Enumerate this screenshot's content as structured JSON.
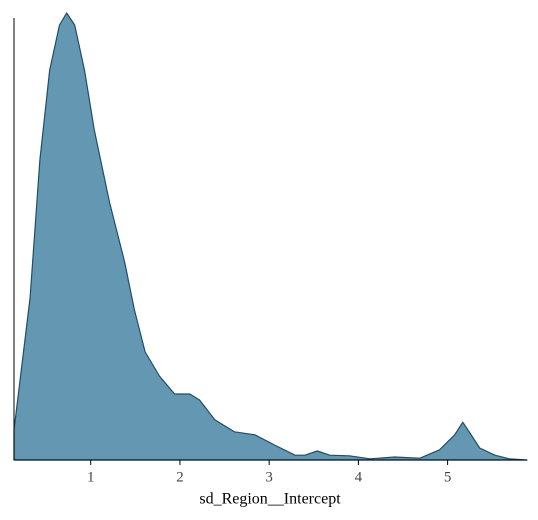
{
  "chart_data": {
    "type": "area",
    "x_label": "sd_Region__Intercept",
    "x": [
      0.14,
      0.32,
      0.43,
      0.54,
      0.65,
      0.73,
      0.82,
      0.93,
      1.04,
      1.21,
      1.38,
      1.49,
      1.61,
      1.77,
      1.94,
      2.11,
      2.22,
      2.39,
      2.61,
      2.84,
      3.06,
      3.29,
      3.4,
      3.54,
      3.68,
      3.9,
      4.13,
      4.41,
      4.69,
      4.91,
      5.08,
      5.17,
      5.25,
      5.36,
      5.53,
      5.69,
      5.89
    ],
    "values": [
      0.05,
      0.27,
      0.5,
      0.65,
      0.725,
      0.745,
      0.725,
      0.65,
      0.55,
      0.43,
      0.33,
      0.25,
      0.18,
      0.14,
      0.11,
      0.11,
      0.1,
      0.067,
      0.047,
      0.042,
      0.025,
      0.008,
      0.008,
      0.015,
      0.008,
      0.007,
      0.002,
      0.005,
      0.003,
      0.017,
      0.042,
      0.063,
      0.045,
      0.02,
      0.008,
      0.002,
      0
    ],
    "color": "#6497b1",
    "line_color": "#1f4e6b",
    "xlim": [
      0.14,
      5.89
    ],
    "xticks": [
      1,
      2,
      3,
      4,
      5
    ],
    "ylim": [
      0,
      0.75
    ]
  }
}
